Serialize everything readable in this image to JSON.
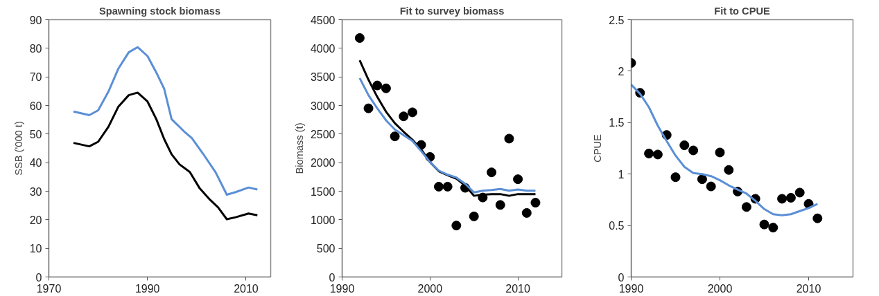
{
  "chart_data": [
    {
      "type": "line",
      "title": "Spawning stock biomass",
      "ylabel": "SSB ('000 t)",
      "xlim": [
        1970,
        2015
      ],
      "xticks": [
        1970,
        1990,
        2010
      ],
      "ylim": [
        0,
        90
      ],
      "yticks": [
        0,
        10,
        20,
        30,
        40,
        50,
        60,
        70,
        80,
        90
      ],
      "line_style": "solid",
      "series": [
        {
          "color": "#5b8fd6",
          "x": [
            1975,
            1978.2,
            1980,
            1982.1,
            1984.1,
            1986.2,
            1988,
            1990,
            1991.8,
            1993.4,
            1994.9,
            1997.5,
            1999,
            2001.2,
            2003.8,
            2006.1,
            2007.9,
            2010.5,
            2012.3
          ],
          "values": [
            57.9,
            56.6,
            58.3,
            64.9,
            72.9,
            78.6,
            80.4,
            77.3,
            71.5,
            65.8,
            55.2,
            50.8,
            48.6,
            43.3,
            36.7,
            28.8,
            29.7,
            31.3,
            30.6
          ]
        },
        {
          "color": "#000000",
          "x": [
            1975,
            1978.2,
            1980,
            1982.1,
            1984.1,
            1986.2,
            1988,
            1990,
            1991.8,
            1993.4,
            1994.9,
            1996.5,
            1998.6,
            2000.6,
            2002.7,
            2004.3,
            2006.1,
            2007.9,
            2010.5,
            2012.3
          ],
          "values": [
            46.9,
            45.7,
            47.3,
            52.6,
            59.6,
            63.6,
            64.5,
            61.4,
            55.2,
            48.2,
            42.9,
            39.4,
            36.7,
            31.0,
            27.0,
            24.4,
            20.2,
            20.9,
            22.2,
            21.6
          ]
        }
      ]
    },
    {
      "type": "scatter",
      "title": "Fit to survey biomass",
      "ylabel": "Biomass (t)",
      "xlim": [
        1990,
        2015
      ],
      "xticks": [
        1990,
        2000,
        2010
      ],
      "ylim": [
        0,
        4500
      ],
      "yticks": [
        0,
        500,
        1000,
        1500,
        2000,
        2500,
        3000,
        3500,
        4000,
        4500
      ],
      "line_style": "solid",
      "series": [
        {
          "marker": "circle",
          "color": "#000000",
          "x": [
            1992,
            1993,
            1994,
            1995,
            1996,
            1997,
            1998,
            1999,
            2000,
            2001,
            2002,
            2003,
            2004,
            2005,
            2006,
            2007,
            2008,
            2009,
            2010,
            2011,
            2012
          ],
          "values": [
            4180,
            2950,
            3350,
            3300,
            2460,
            2810,
            2880,
            2310,
            2100,
            1580,
            1580,
            900,
            1560,
            1060,
            1390,
            1830,
            1260,
            2420,
            1710,
            1120,
            1300
          ]
        },
        {
          "type": "line",
          "color": "#000000",
          "x": [
            1992,
            1993,
            1994,
            1995,
            1996,
            1997,
            1998,
            1999,
            2000,
            2001,
            2002,
            2003,
            2004,
            2005,
            2006,
            2007,
            2008,
            2009,
            2010,
            2011,
            2012
          ],
          "values": [
            3790,
            3450,
            3150,
            2890,
            2690,
            2540,
            2400,
            2230,
            2010,
            1850,
            1780,
            1720,
            1600,
            1420,
            1440,
            1450,
            1450,
            1420,
            1450,
            1450,
            1450
          ]
        },
        {
          "type": "line",
          "color": "#5b8fd6",
          "x": [
            1992,
            1993,
            1994,
            1995,
            1996,
            1997,
            1998,
            1999,
            2000,
            2001,
            2002,
            2003,
            2004,
            2005,
            2006,
            2007,
            2008,
            2009,
            2010,
            2011,
            2012
          ],
          "values": [
            3480,
            3180,
            2950,
            2740,
            2580,
            2480,
            2380,
            2200,
            2010,
            1860,
            1790,
            1740,
            1630,
            1480,
            1510,
            1520,
            1540,
            1510,
            1530,
            1510,
            1510
          ]
        }
      ]
    },
    {
      "type": "scatter",
      "title": "Fit to CPUE",
      "ylabel": "CPUE",
      "xlim": [
        1990,
        2015
      ],
      "xticks": [
        1990,
        2000,
        2010
      ],
      "ylim": [
        0,
        2.5
      ],
      "yticks": [
        0,
        0.5,
        1,
        1.5,
        2,
        2.5
      ],
      "line_style": "solid",
      "series": [
        {
          "marker": "circle",
          "color": "#000000",
          "x": [
            1990,
            1991,
            1992,
            1993,
            1994,
            1995,
            1996,
            1997,
            1998,
            1999,
            2000,
            2001,
            2002,
            2003,
            2004,
            2005,
            2006,
            2007,
            2008,
            2009,
            2010,
            2011
          ],
          "values": [
            2.08,
            1.79,
            1.2,
            1.19,
            1.38,
            0.97,
            1.28,
            1.23,
            0.95,
            0.88,
            1.21,
            1.04,
            0.83,
            0.68,
            0.76,
            0.51,
            0.48,
            0.76,
            0.77,
            0.82,
            0.71,
            0.57
          ]
        },
        {
          "type": "line",
          "color": "#5b8fd6",
          "x": [
            1990,
            1991,
            1992,
            1993,
            1994,
            1995,
            1996,
            1997,
            1998,
            1999,
            2000,
            2001,
            2002,
            2003,
            2004,
            2005,
            2006,
            2007,
            2008,
            2009,
            2010,
            2011
          ],
          "values": [
            1.87,
            1.78,
            1.65,
            1.47,
            1.32,
            1.18,
            1.07,
            1.01,
            1.0,
            0.98,
            0.94,
            0.89,
            0.85,
            0.81,
            0.74,
            0.66,
            0.61,
            0.6,
            0.61,
            0.64,
            0.67,
            0.71
          ]
        }
      ]
    }
  ]
}
